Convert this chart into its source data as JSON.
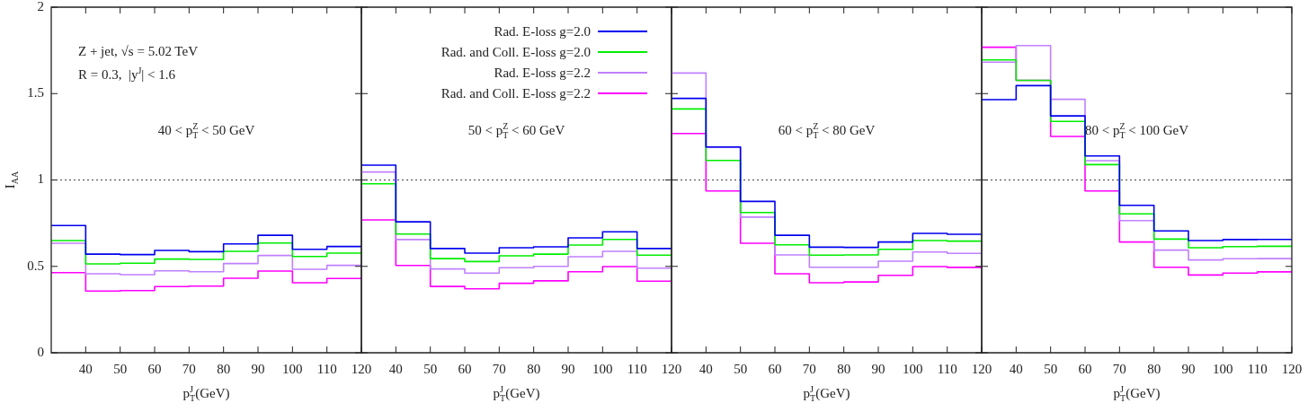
{
  "chart_data": [
    {
      "type": "step",
      "xlabel": "p$_{T}$$^{J}$(GeV)",
      "ylabel": "I$_{AA}$",
      "x": [
        30,
        40,
        50,
        60,
        70,
        80,
        90,
        100,
        110
      ],
      "xlim": [
        30,
        120
      ],
      "xticks": [
        40,
        50,
        60,
        70,
        80,
        90,
        100,
        110,
        120
      ],
      "ylim": [
        0,
        2
      ],
      "yticks": [
        0,
        0.5,
        1,
        1.5,
        2
      ],
      "annotations": [
        "Z + jet, √s = 5.02 TeV",
        "R = 0.3,  |y$^{J}$| < 1.6",
        "40 < p$_{T}$$^{Z}$ < 50 GeV"
      ],
      "ref_lines": [
        {
          "axis": "y",
          "value": 1,
          "line_style": "dotted"
        }
      ],
      "series": [
        {
          "color": "#0000ee",
          "values": [
            0.736,
            0.571,
            0.568,
            0.592,
            0.585,
            0.63,
            0.68,
            0.599,
            0.615
          ]
        },
        {
          "color": "#00ee00",
          "values": [
            0.649,
            0.514,
            0.518,
            0.542,
            0.54,
            0.587,
            0.635,
            0.557,
            0.577
          ]
        },
        {
          "color": "#c080ff",
          "values": [
            0.634,
            0.457,
            0.452,
            0.474,
            0.469,
            0.516,
            0.563,
            0.483,
            0.506
          ]
        },
        {
          "color": "#ff00ff",
          "values": [
            0.464,
            0.357,
            0.36,
            0.383,
            0.386,
            0.431,
            0.473,
            0.405,
            0.43
          ]
        }
      ]
    },
    {
      "type": "step",
      "xlabel": "p$_{T}$$^{J}$(GeV)",
      "x": [
        30,
        40,
        50,
        60,
        70,
        80,
        90,
        100,
        110
      ],
      "xlim": [
        30,
        120
      ],
      "xticks": [
        40,
        50,
        60,
        70,
        80,
        90,
        100,
        110,
        120
      ],
      "ylim": [
        0,
        2
      ],
      "yticks": [
        0,
        0.5,
        1,
        1.5,
        2
      ],
      "tick_labels": "x",
      "legend": "top right",
      "annotations": [
        "50 < p$_{T}$$^{Z}$ < 60 GeV"
      ],
      "ref_lines": [
        {
          "axis": "y",
          "value": 1,
          "line_style": "dotted"
        }
      ],
      "series": [
        {
          "name": "Rad. E-loss g=2.0",
          "color": "#0000ee",
          "values": [
            1.086,
            0.758,
            0.603,
            0.577,
            0.608,
            0.613,
            0.665,
            0.7,
            0.603
          ]
        },
        {
          "name": "Rad. and Coll. E-loss g=2.0",
          "color": "#00ee00",
          "values": [
            0.978,
            0.687,
            0.545,
            0.528,
            0.561,
            0.571,
            0.623,
            0.656,
            0.565
          ]
        },
        {
          "name": "Rad. E-loss g=2.2",
          "color": "#c080ff",
          "values": [
            1.046,
            0.655,
            0.485,
            0.461,
            0.492,
            0.5,
            0.556,
            0.587,
            0.49
          ]
        },
        {
          "name": "Rad. and Coll. E-loss g=2.2",
          "color": "#ff00ff",
          "values": [
            0.769,
            0.505,
            0.384,
            0.37,
            0.402,
            0.416,
            0.469,
            0.499,
            0.414
          ]
        }
      ]
    },
    {
      "type": "step",
      "xlabel": "p$_{T}$$^{J}$(GeV)",
      "x": [
        30,
        40,
        50,
        60,
        70,
        80,
        90,
        100,
        110
      ],
      "xlim": [
        30,
        120
      ],
      "xticks": [
        40,
        50,
        60,
        70,
        80,
        90,
        100,
        110,
        120
      ],
      "ylim": [
        0,
        2
      ],
      "yticks": [
        0,
        0.5,
        1,
        1.5,
        2
      ],
      "tick_labels": "x",
      "annotations": [
        "60 < p$_{T}$$^{Z}$ < 80 GeV"
      ],
      "ref_lines": [
        {
          "axis": "y",
          "value": 1,
          "line_style": "dotted"
        }
      ],
      "series": [
        {
          "color": "#0000ee",
          "values": [
            1.472,
            1.191,
            0.876,
            0.68,
            0.611,
            0.61,
            0.641,
            0.691,
            0.686
          ]
        },
        {
          "color": "#00ee00",
          "values": [
            1.411,
            1.113,
            0.812,
            0.625,
            0.565,
            0.566,
            0.599,
            0.649,
            0.646
          ]
        },
        {
          "color": "#c080ff",
          "values": [
            1.619,
            1.188,
            0.785,
            0.566,
            0.495,
            0.495,
            0.53,
            0.583,
            0.575
          ]
        },
        {
          "color": "#ff00ff",
          "values": [
            1.269,
            0.936,
            0.634,
            0.457,
            0.405,
            0.41,
            0.448,
            0.499,
            0.494
          ]
        }
      ]
    },
    {
      "type": "step",
      "xlabel": "p$_{T}$$^{J}$(GeV)",
      "x": [
        30,
        40,
        50,
        60,
        70,
        80,
        90,
        100,
        110
      ],
      "xlim": [
        30,
        120
      ],
      "xticks": [
        40,
        50,
        60,
        70,
        80,
        90,
        100,
        110,
        120
      ],
      "ylim": [
        0,
        2
      ],
      "yticks": [
        0,
        0.5,
        1,
        1.5,
        2
      ],
      "tick_labels": "x",
      "annotations": [
        "80 < p$_{T}$$^{Z}$ < 100 GeV"
      ],
      "ref_lines": [
        {
          "axis": "y",
          "value": 1,
          "line_style": "dotted"
        }
      ],
      "series": [
        {
          "color": "#0000ee",
          "values": [
            1.465,
            1.546,
            1.371,
            1.139,
            0.853,
            0.705,
            0.649,
            0.655,
            0.656
          ]
        },
        {
          "color": "#00ee00",
          "values": [
            1.695,
            1.577,
            1.339,
            1.089,
            0.804,
            0.658,
            0.608,
            0.614,
            0.616
          ]
        },
        {
          "color": "#c080ff",
          "values": [
            1.682,
            1.778,
            1.467,
            1.112,
            0.765,
            0.594,
            0.537,
            0.544,
            0.545
          ]
        },
        {
          "color": "#ff00ff",
          "values": [
            1.768,
            1.577,
            1.252,
            0.936,
            0.641,
            0.495,
            0.45,
            0.461,
            0.468
          ]
        }
      ]
    }
  ]
}
